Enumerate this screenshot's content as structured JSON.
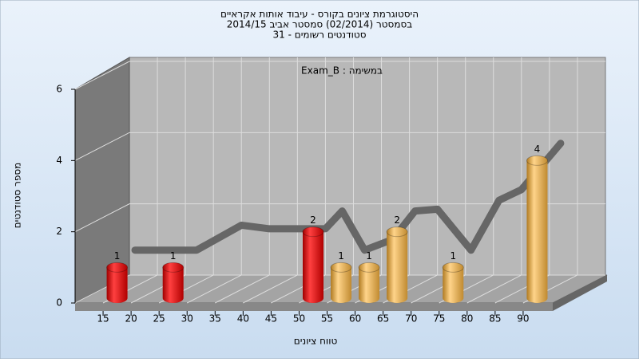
{
  "chart_data": {
    "type": "bar3d",
    "title": [
      "היסטוגרמת ציונים בקורס - עיבוד אותות אקראיים",
      "בסמסטר  (02/2014)  סמסטר אביב 2014/15",
      "סטודנטים רשומים - 31"
    ],
    "annotation": "Exam_B : במשימה",
    "xlabel": "טווח ציונים",
    "ylabel": "מספר סטודנטים",
    "x": [
      17.5,
      27.5,
      52.5,
      57.5,
      62.5,
      67.5,
      77.5,
      92.5
    ],
    "values": [
      1,
      1,
      2,
      1,
      1,
      2,
      1,
      4
    ],
    "colors": [
      "red",
      "red",
      "red",
      "orange",
      "orange",
      "orange",
      "orange",
      "orange"
    ],
    "curve": {
      "x": [
        11,
        22,
        30,
        35,
        45,
        48,
        52,
        57,
        61,
        65,
        71,
        76,
        80,
        87
      ],
      "values": [
        0.7,
        0.7,
        1.4,
        1.3,
        1.3,
        1.8,
        0.7,
        1,
        1.8,
        1.85,
        0.7,
        2.1,
        2.4,
        3.7
      ],
      "color": "#666666"
    },
    "xlim": [
      10,
      95
    ],
    "xticks": [
      15,
      20,
      25,
      30,
      35,
      40,
      45,
      50,
      55,
      60,
      65,
      70,
      75,
      80,
      85,
      90
    ],
    "ylim": [
      0,
      6
    ],
    "yticks": [
      0,
      2,
      4,
      6
    ],
    "grid": true
  }
}
